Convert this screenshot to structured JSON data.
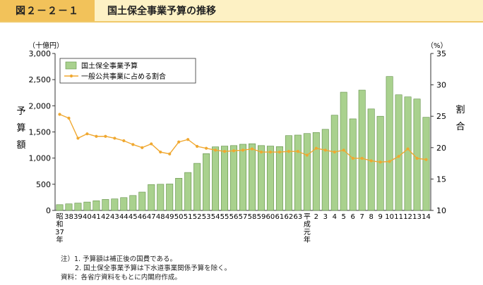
{
  "header": {
    "figure_number": "図２－２－１",
    "title": "国土保全事業予算の推移"
  },
  "chart_data": {
    "type": "bar",
    "left_axis": {
      "unit": "（十億円）",
      "label_chars": [
        "予",
        "算",
        "額"
      ],
      "range": [
        0,
        3000
      ],
      "ticks": [
        "0",
        "500",
        "1,000",
        "1,500",
        "2,000",
        "2,500",
        "3,000"
      ]
    },
    "right_axis": {
      "unit": "（%）",
      "label_chars": [
        "割",
        "合"
      ],
      "range": [
        10,
        35
      ],
      "ticks": [
        "10",
        "15",
        "20",
        "25",
        "30",
        "35"
      ]
    },
    "categories": [
      "昭和37年",
      "38",
      "39",
      "40",
      "41",
      "42",
      "43",
      "44",
      "45",
      "46",
      "47",
      "48",
      "49",
      "50",
      "51",
      "52",
      "53",
      "54",
      "55",
      "56",
      "57",
      "58",
      "59",
      "60",
      "61",
      "62",
      "63",
      "平成元年",
      "2",
      "3",
      "4",
      "5",
      "6",
      "7",
      "8",
      "9",
      "10",
      "11",
      "12",
      "13",
      "14"
    ],
    "category_display": [
      [
        "昭",
        "和",
        "37",
        "年"
      ],
      [
        "38"
      ],
      [
        "39"
      ],
      [
        "40"
      ],
      [
        "41"
      ],
      [
        "42"
      ],
      [
        "43"
      ],
      [
        "44"
      ],
      [
        "45"
      ],
      [
        "46"
      ],
      [
        "47"
      ],
      [
        "48"
      ],
      [
        "49"
      ],
      [
        "50"
      ],
      [
        "51"
      ],
      [
        "52"
      ],
      [
        "53"
      ],
      [
        "54"
      ],
      [
        "55"
      ],
      [
        "56"
      ],
      [
        "57"
      ],
      [
        "58"
      ],
      [
        "59"
      ],
      [
        "60"
      ],
      [
        "61"
      ],
      [
        "62"
      ],
      [
        "63"
      ],
      [
        "平",
        "成",
        "元",
        "年"
      ],
      [
        "2"
      ],
      [
        "3"
      ],
      [
        "4"
      ],
      [
        "5"
      ],
      [
        "6"
      ],
      [
        "7"
      ],
      [
        "8"
      ],
      [
        "9"
      ],
      [
        "10"
      ],
      [
        "11"
      ],
      [
        "12"
      ],
      [
        "13"
      ],
      [
        "14"
      ]
    ],
    "series": [
      {
        "name": "国土保全事業予算",
        "kind": "bar",
        "axis": "left",
        "color": "#a9d18e",
        "values": [
          110,
          125,
          140,
          160,
          185,
          210,
          220,
          245,
          285,
          350,
          495,
          500,
          505,
          615,
          725,
          900,
          1085,
          1215,
          1230,
          1240,
          1265,
          1275,
          1240,
          1230,
          1220,
          1430,
          1440,
          1470,
          1490,
          1550,
          1820,
          2260,
          1750,
          2300,
          1940,
          1800,
          2560,
          2210,
          2170,
          2130,
          1780
        ]
      },
      {
        "name": "一般公共事業に占める割合",
        "kind": "line",
        "axis": "right",
        "color": "#f0a830",
        "values": [
          25.3,
          24.7,
          21.5,
          22.2,
          21.8,
          21.8,
          21.5,
          21.1,
          20.5,
          20.0,
          20.6,
          19.3,
          19.0,
          20.9,
          21.3,
          20.2,
          19.9,
          19.6,
          19.4,
          19.5,
          19.6,
          19.8,
          19.3,
          19.3,
          19.3,
          19.4,
          19.4,
          18.8,
          19.9,
          19.6,
          19.3,
          19.6,
          18.3,
          18.3,
          17.9,
          17.7,
          17.8,
          18.6,
          19.8,
          18.3,
          18.1
        ]
      }
    ],
    "grid": false,
    "legend_position": "top-left"
  },
  "notes": {
    "line1": "注）1. 予算額は補正後の国費である。",
    "line2": "2. 国土保全事業予算は下水道事業関係予算を除く。",
    "line3": "資料：各省庁資料をもとに内閣府作成。"
  }
}
